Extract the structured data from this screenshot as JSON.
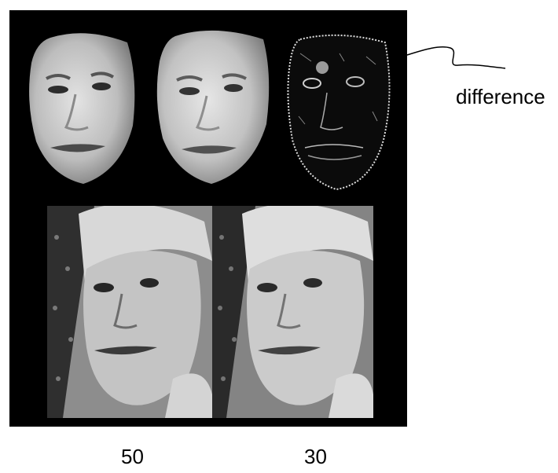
{
  "annotation": {
    "label": "difference"
  },
  "captions": {
    "left": "50",
    "right": "30"
  },
  "colors": {
    "background": "#000000",
    "page": "#ffffff",
    "skin": "#bdbdbd",
    "shadow": "#5a5a5a"
  },
  "images": {
    "masked_face_left": "masked face, grayscale",
    "masked_face_right": "masked face, grayscale, smoothed",
    "difference_map": "difference image",
    "photo_left": "portrait photo, grayscale",
    "photo_right": "portrait photo, grayscale, smoothed"
  }
}
